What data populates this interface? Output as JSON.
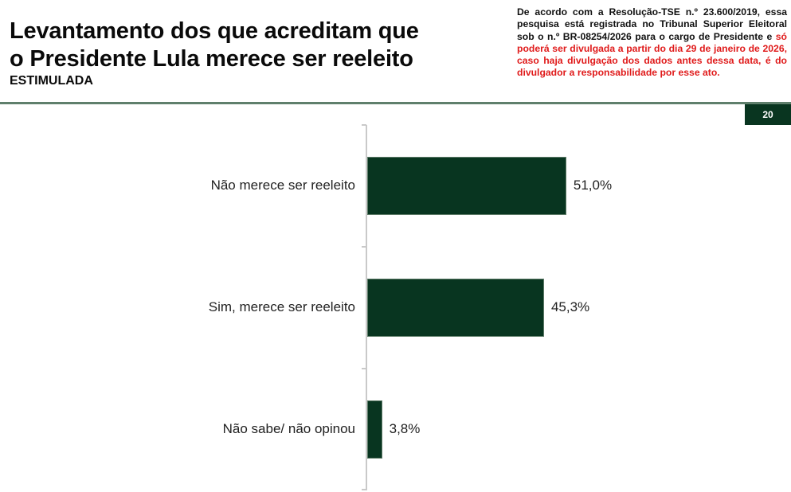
{
  "header": {
    "title_line1": "Levantamento dos que acreditam que",
    "title_line2": "o Presidente Lula merece ser reeleito",
    "subtitle": "ESTIMULADA",
    "notice_black": "De acordo com a Resolução-TSE n.º 23.600/2019, essa pesquisa está registrada no Tribunal Superior Eleitoral sob o n.º BR-08254/2026 para o cargo de Presidente e ",
    "notice_red": "só poderá ser divulgada a partir do dia 29 de janeiro de 2026, caso haja divulgação dos dados antes dessa data, é do divulgador a responsabilidade por esse ato.",
    "page_number": "20"
  },
  "colors": {
    "bar": "#083520",
    "accent_red": "#e01b1b",
    "divider": "#5f7f6c",
    "page_badge": "#093520"
  },
  "chart_data": {
    "type": "bar",
    "orientation": "horizontal",
    "title": "Levantamento dos que acreditam que o Presidente Lula merece ser reeleito",
    "subtitle": "ESTIMULADA",
    "categories": [
      "Não merece ser reeleito",
      "Sim, merece ser reeleito",
      "Não sabe/ não opinou"
    ],
    "values": [
      51.0,
      45.3,
      3.8
    ],
    "value_labels": [
      "51,0%",
      "45,3%",
      "3,8%"
    ],
    "unit": "%",
    "xlabel": "",
    "ylabel": "",
    "xlim": [
      0,
      100
    ],
    "grid": false,
    "legend": null
  }
}
